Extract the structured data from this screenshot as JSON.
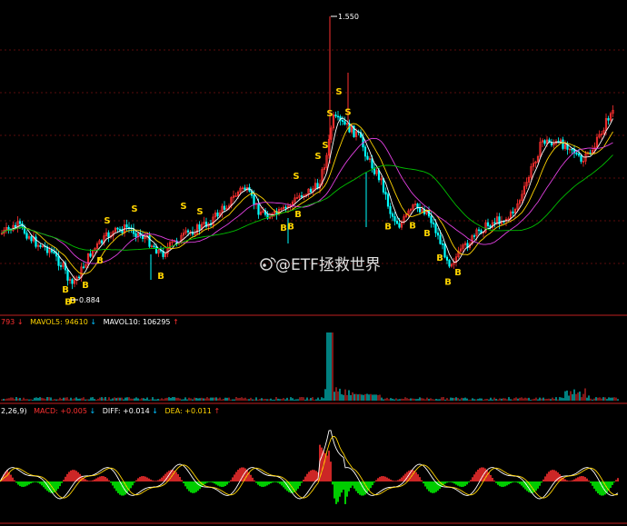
{
  "chart_data": [
    {
      "type": "candlestick",
      "title": "",
      "price_high_label": "1.550",
      "price_low_label": "0.884",
      "ma_colors": [
        "#ffffff",
        "#ffd400",
        "#e040e0",
        "#00c000"
      ],
      "buy_signal_text": "B",
      "sell_signal_text": "S",
      "buy_signal_x": [
        72,
        75,
        80,
        94,
        110,
        177,
        312,
        320,
        328,
        427,
        454,
        470,
        484,
        493,
        504
      ],
      "sell_signal_x": [
        118,
        148,
        202,
        220,
        326,
        350,
        358,
        363,
        373,
        383
      ],
      "up_color": "#ff3030",
      "down_color": "#00ffff",
      "grid": true
    },
    {
      "type": "bar",
      "legend_text": [
        "793",
        "MAVOL5: 94610",
        "MAVOL10: 106295"
      ],
      "legend_arrows": [
        "↓",
        "↓",
        "↑"
      ],
      "legend_colors": [
        "#ff3030",
        "#ffd400",
        "#ffffff"
      ]
    },
    {
      "type": "bar",
      "legend_text": [
        "2,26,9)",
        "MACD: +0.005",
        "DIFF: +0.014",
        "DEA: +0.011"
      ],
      "legend_arrows": [
        "",
        "↓",
        "↓",
        "↑"
      ],
      "legend_colors": [
        "#ffffff",
        "#ff3030",
        "#ffffff",
        "#ffd400"
      ],
      "positive_color": "#ff3030",
      "negative_color": "#00ff00"
    }
  ],
  "watermark": "@ETF拯救世界"
}
